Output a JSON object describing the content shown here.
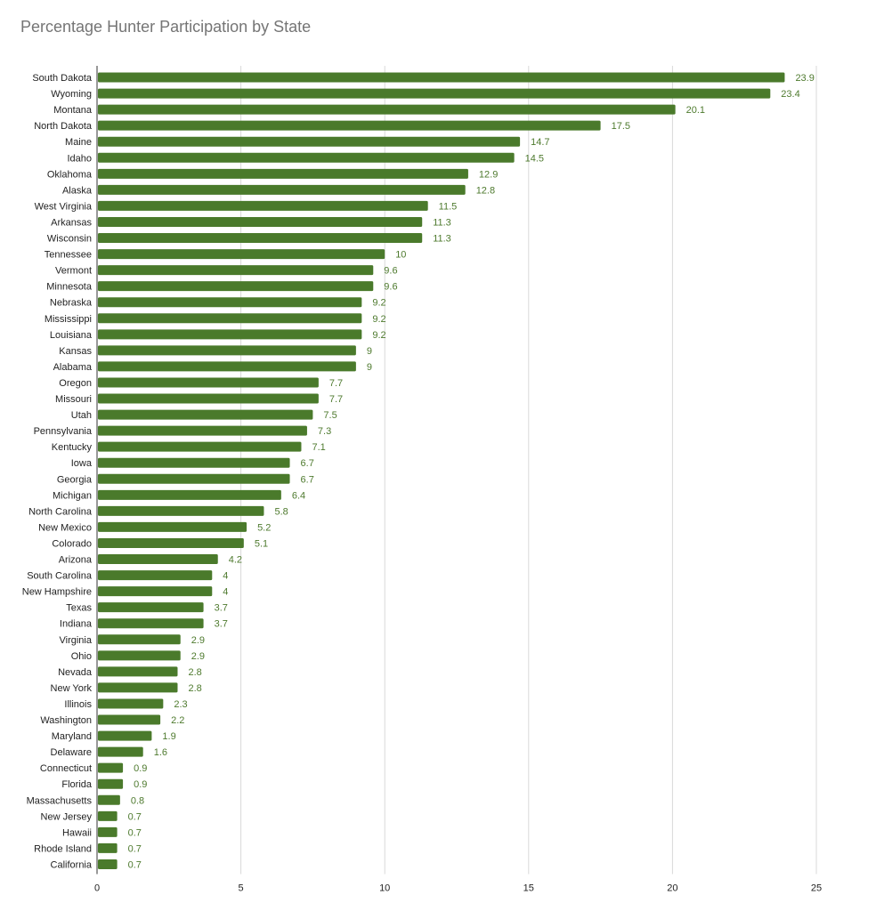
{
  "chart_data": {
    "type": "bar",
    "orientation": "horizontal",
    "title": "Percentage Hunter Participation by State",
    "xlabel": "",
    "ylabel": "",
    "xlim": [
      0,
      25
    ],
    "xticks": [
      0,
      5,
      10,
      15,
      20,
      25
    ],
    "grid": true,
    "bar_color": "#4a7a2b",
    "label_color": "#4e7a2e",
    "categories": [
      "South Dakota",
      "Wyoming",
      "Montana",
      "North Dakota",
      "Maine",
      "Idaho",
      "Oklahoma",
      "Alaska",
      "West Virginia",
      "Arkansas",
      "Wisconsin",
      "Tennessee",
      "Vermont",
      "Minnesota",
      "Nebraska",
      "Mississippi",
      "Louisiana",
      "Kansas",
      "Alabama",
      "Oregon",
      "Missouri",
      "Utah",
      "Pennsylvania",
      "Kentucky",
      "Iowa",
      "Georgia",
      "Michigan",
      "North Carolina",
      "New Mexico",
      "Colorado",
      "Arizona",
      "South Carolina",
      "New Hampshire",
      "Texas",
      "Indiana",
      "Virginia",
      "Ohio",
      "Nevada",
      "New York",
      "Illinois",
      "Washington",
      "Maryland",
      "Delaware",
      "Connecticut",
      "Florida",
      "Massachusetts",
      "New Jersey",
      "Hawaii",
      "Rhode Island",
      "California"
    ],
    "values": [
      23.9,
      23.4,
      20.1,
      17.5,
      14.7,
      14.5,
      12.9,
      12.8,
      11.5,
      11.3,
      11.3,
      10,
      9.6,
      9.6,
      9.2,
      9.2,
      9.2,
      9,
      9,
      7.7,
      7.7,
      7.5,
      7.3,
      7.1,
      6.7,
      6.7,
      6.4,
      5.8,
      5.2,
      5.1,
      4.2,
      4,
      4,
      3.7,
      3.7,
      2.9,
      2.9,
      2.8,
      2.8,
      2.3,
      2.2,
      1.9,
      1.6,
      0.9,
      0.9,
      0.8,
      0.7,
      0.7,
      0.7,
      0.7
    ]
  }
}
